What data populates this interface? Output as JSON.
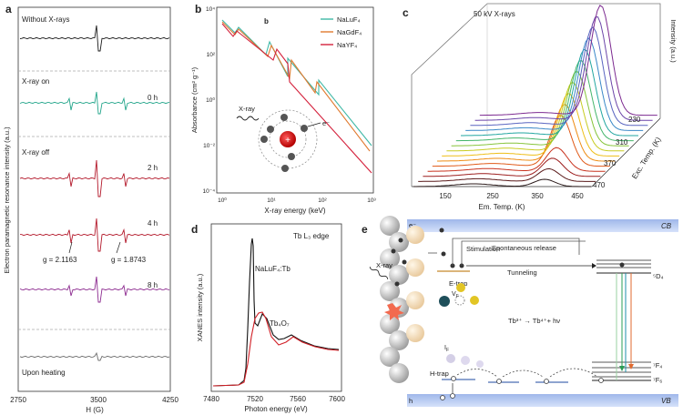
{
  "panels": {
    "a": {
      "label": "a",
      "ylabel": "Electron paramagnetic resonance intensity (a.u.)",
      "xlabel": "H (G)",
      "xticks": [
        "2750",
        "3500",
        "4250"
      ],
      "section_without": "Without X-rays",
      "section_on": "X-ray on",
      "section_off": "X-ray off",
      "t0": "0 h",
      "t2": "2 h",
      "t4": "4 h",
      "t8": "8 h",
      "g1": "g = 2.1163",
      "g2": "g = 1.8743",
      "section_heating": "Upon heating",
      "colors": {
        "black": "#1a1a1a",
        "teal": "#22a58a",
        "red": "#b3182a",
        "purple": "#8c2a8f",
        "grey": "#6d6d6d"
      }
    },
    "b": {
      "label": "b",
      "inner_letter": "b",
      "ylabel": "Absorbance (cm² g⁻¹)",
      "xlabel": "X-ray energy (keV)",
      "yticks": [
        "10⁴",
        "10²",
        "10⁰",
        "10⁻²",
        "10⁻⁴"
      ],
      "xticks": [
        "10⁰",
        "10¹",
        "10²",
        "10³"
      ],
      "legend": [
        {
          "name": "NaLuF₄",
          "color": "#3fb8a6"
        },
        {
          "name": "NaGdF₄",
          "color": "#e07a2f"
        },
        {
          "name": "NaYF₄",
          "color": "#d4213c"
        }
      ],
      "inset_xray": "X-ray",
      "inset_electron": "e⁻"
    },
    "c": {
      "label": "c",
      "title": "50 kV X-rays",
      "zlabel": "Intensity (a.u.)",
      "xlabel": "Em. Temp. (K)",
      "xticks": [
        "150",
        "250",
        "350",
        "450"
      ],
      "ylabel": "Exc. Temp. (K)",
      "yticks": [
        "230",
        "310",
        "370",
        "470"
      ]
    },
    "d": {
      "label": "d",
      "title": "Tb L₃ edge",
      "ylabel": "XANES intensity (a.u.)",
      "xlabel": "Photon energy (eV)",
      "xticks": [
        "7480",
        "7520",
        "7560",
        "7600"
      ],
      "curve1": "NaLuF₄:Tb",
      "curve2": "Tb₄O₇",
      "colors": {
        "c1": "#111111",
        "c2": "#d11f26"
      }
    },
    "e": {
      "label": "e",
      "cb": "CB",
      "vb": "VB",
      "electron": "e⁻",
      "hole": "h",
      "spontaneous": "Spontaneous release",
      "stimulation": "Stimulation",
      "tunneling": "Tunneling",
      "xray": "X-ray",
      "etrap": "E-trap",
      "vf": "V",
      "vf_sub": "F",
      "htrap": "H-trap",
      "if": "I",
      "if_sub": "F",
      "reaction": "Tb³⁺ → Tb⁴⁺+ hν",
      "d4": "⁵D₄",
      "f4": "⁷F₄",
      "f6": "⁷F₆"
    }
  }
}
